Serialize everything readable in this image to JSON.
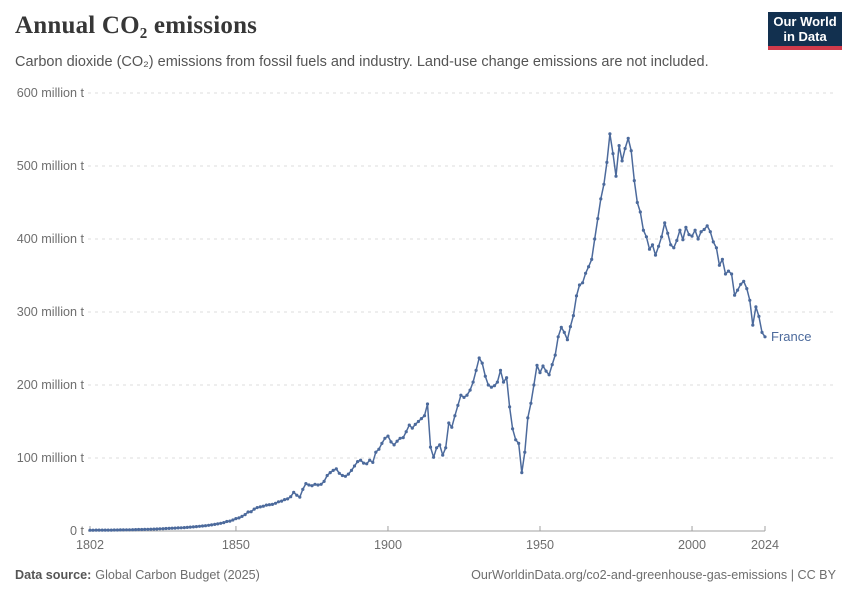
{
  "header": {
    "title": "Annual CO₂ emissions",
    "subtitle": "Carbon dioxide (CO₂) emissions from fossil fuels and industry. Land-use change emissions are not included."
  },
  "logo": {
    "lines": [
      "Our World",
      "in Data"
    ],
    "bg_color": "#12304F",
    "accent_color": "#D13B4B"
  },
  "chart_data": {
    "type": "line",
    "title": "Annual CO₂ emissions",
    "entity": "France",
    "unit": "million t",
    "xlim": [
      1802,
      2024
    ],
    "ylim": [
      0,
      600
    ],
    "grid": true,
    "legend_position": "end-of-line",
    "x_ticks": [
      1802,
      1850,
      1900,
      1950,
      2000,
      2024
    ],
    "y_ticks": [
      0,
      100,
      200,
      300,
      400,
      500,
      600
    ],
    "y_tick_labels": [
      "0 t",
      "100 million t",
      "200 million t",
      "300 million t",
      "400 million t",
      "500 million t",
      "600 million t"
    ],
    "colors": {
      "series": "#4C6A9C",
      "grid": "#DCDCDC",
      "axis": "#A0A0A0",
      "tick_text": "#6E6E6E"
    },
    "series": [
      {
        "name": "France",
        "color": "#4C6A9C",
        "years": [
          1802,
          1803,
          1804,
          1805,
          1806,
          1807,
          1808,
          1809,
          1810,
          1811,
          1812,
          1813,
          1814,
          1815,
          1816,
          1817,
          1818,
          1819,
          1820,
          1821,
          1822,
          1823,
          1824,
          1825,
          1826,
          1827,
          1828,
          1829,
          1830,
          1831,
          1832,
          1833,
          1834,
          1835,
          1836,
          1837,
          1838,
          1839,
          1840,
          1841,
          1842,
          1843,
          1844,
          1845,
          1846,
          1847,
          1848,
          1849,
          1850,
          1851,
          1852,
          1853,
          1854,
          1855,
          1856,
          1857,
          1858,
          1859,
          1860,
          1861,
          1862,
          1863,
          1864,
          1865,
          1866,
          1867,
          1868,
          1869,
          1870,
          1871,
          1872,
          1873,
          1874,
          1875,
          1876,
          1877,
          1878,
          1879,
          1880,
          1881,
          1882,
          1883,
          1884,
          1885,
          1886,
          1887,
          1888,
          1889,
          1890,
          1891,
          1892,
          1893,
          1894,
          1895,
          1896,
          1897,
          1898,
          1899,
          1900,
          1901,
          1902,
          1903,
          1904,
          1905,
          1906,
          1907,
          1908,
          1909,
          1910,
          1911,
          1912,
          1913,
          1914,
          1915,
          1916,
          1917,
          1918,
          1919,
          1920,
          1921,
          1922,
          1923,
          1924,
          1925,
          1926,
          1927,
          1928,
          1929,
          1930,
          1931,
          1932,
          1933,
          1934,
          1935,
          1936,
          1937,
          1938,
          1939,
          1940,
          1941,
          1942,
          1943,
          1944,
          1945,
          1946,
          1947,
          1948,
          1949,
          1950,
          1951,
          1952,
          1953,
          1954,
          1955,
          1956,
          1957,
          1958,
          1959,
          1960,
          1961,
          1962,
          1963,
          1964,
          1965,
          1966,
          1967,
          1968,
          1969,
          1970,
          1971,
          1972,
          1973,
          1974,
          1975,
          1976,
          1977,
          1978,
          1979,
          1980,
          1981,
          1982,
          1983,
          1984,
          1985,
          1986,
          1987,
          1988,
          1989,
          1990,
          1991,
          1992,
          1993,
          1994,
          1995,
          1996,
          1997,
          1998,
          1999,
          2000,
          2001,
          2002,
          2003,
          2004,
          2005,
          2006,
          2007,
          2008,
          2009,
          2010,
          2011,
          2012,
          2013,
          2014,
          2015,
          2016,
          2017,
          2018,
          2019,
          2020,
          2021,
          2022,
          2023,
          2024
        ],
        "values": [
          1.1,
          1.1,
          1.2,
          1.2,
          1.2,
          1.3,
          1.3,
          1.3,
          1.4,
          1.4,
          1.5,
          1.5,
          1.6,
          1.7,
          1.8,
          1.9,
          2.0,
          2.1,
          2.2,
          2.3,
          2.5,
          2.6,
          2.8,
          3.0,
          3.2,
          3.4,
          3.6,
          3.8,
          4.0,
          4.2,
          4.4,
          4.7,
          5.0,
          5.3,
          5.6,
          6.0,
          6.4,
          6.8,
          7.3,
          7.8,
          8.4,
          9.0,
          9.7,
          10.5,
          11.5,
          13.0,
          13.5,
          15.0,
          17,
          18,
          20,
          22.5,
          26,
          26.5,
          30,
          32,
          33,
          34,
          35.5,
          36,
          36.5,
          38,
          40,
          41,
          43,
          44,
          47,
          53,
          49,
          46.5,
          57,
          65,
          63,
          62,
          64,
          63,
          64,
          68,
          76,
          80,
          83,
          85,
          79,
          76,
          75,
          78,
          83,
          89,
          95,
          97,
          93,
          92,
          97,
          94,
          108,
          112,
          120,
          127,
          130,
          122,
          118,
          123,
          127,
          128,
          136,
          145,
          141,
          146,
          150,
          154,
          158,
          174,
          115,
          101,
          114,
          118,
          104,
          114,
          148,
          142,
          158,
          172,
          186,
          183,
          186,
          193,
          204,
          220,
          237,
          230,
          212,
          200,
          197,
          199,
          204,
          220,
          204,
          210,
          170,
          140,
          125,
          120,
          80,
          108,
          155,
          175,
          200,
          227,
          217,
          226,
          219,
          214,
          228,
          241,
          266,
          279,
          272,
          262,
          280,
          295,
          322,
          337,
          340,
          353,
          362,
          372,
          400,
          428,
          455,
          475,
          505,
          544,
          517,
          486,
          528,
          507,
          524,
          538,
          521,
          480,
          450,
          437,
          412,
          403,
          386,
          392,
          378,
          390,
          403,
          422,
          408,
          392,
          388,
          398,
          412,
          399,
          416,
          406,
          404,
          412,
          400,
          410,
          413,
          418,
          410,
          396,
          388,
          364,
          372,
          352,
          356,
          352,
          323,
          330,
          338,
          342,
          332,
          316,
          282,
          307,
          294,
          272,
          266
        ]
      }
    ]
  },
  "footer": {
    "source_label": "Data source:",
    "source_value": "Global Carbon Budget (2025)",
    "credit": "OurWorldinData.org/co2-and-greenhouse-gas-emissions | CC BY"
  }
}
